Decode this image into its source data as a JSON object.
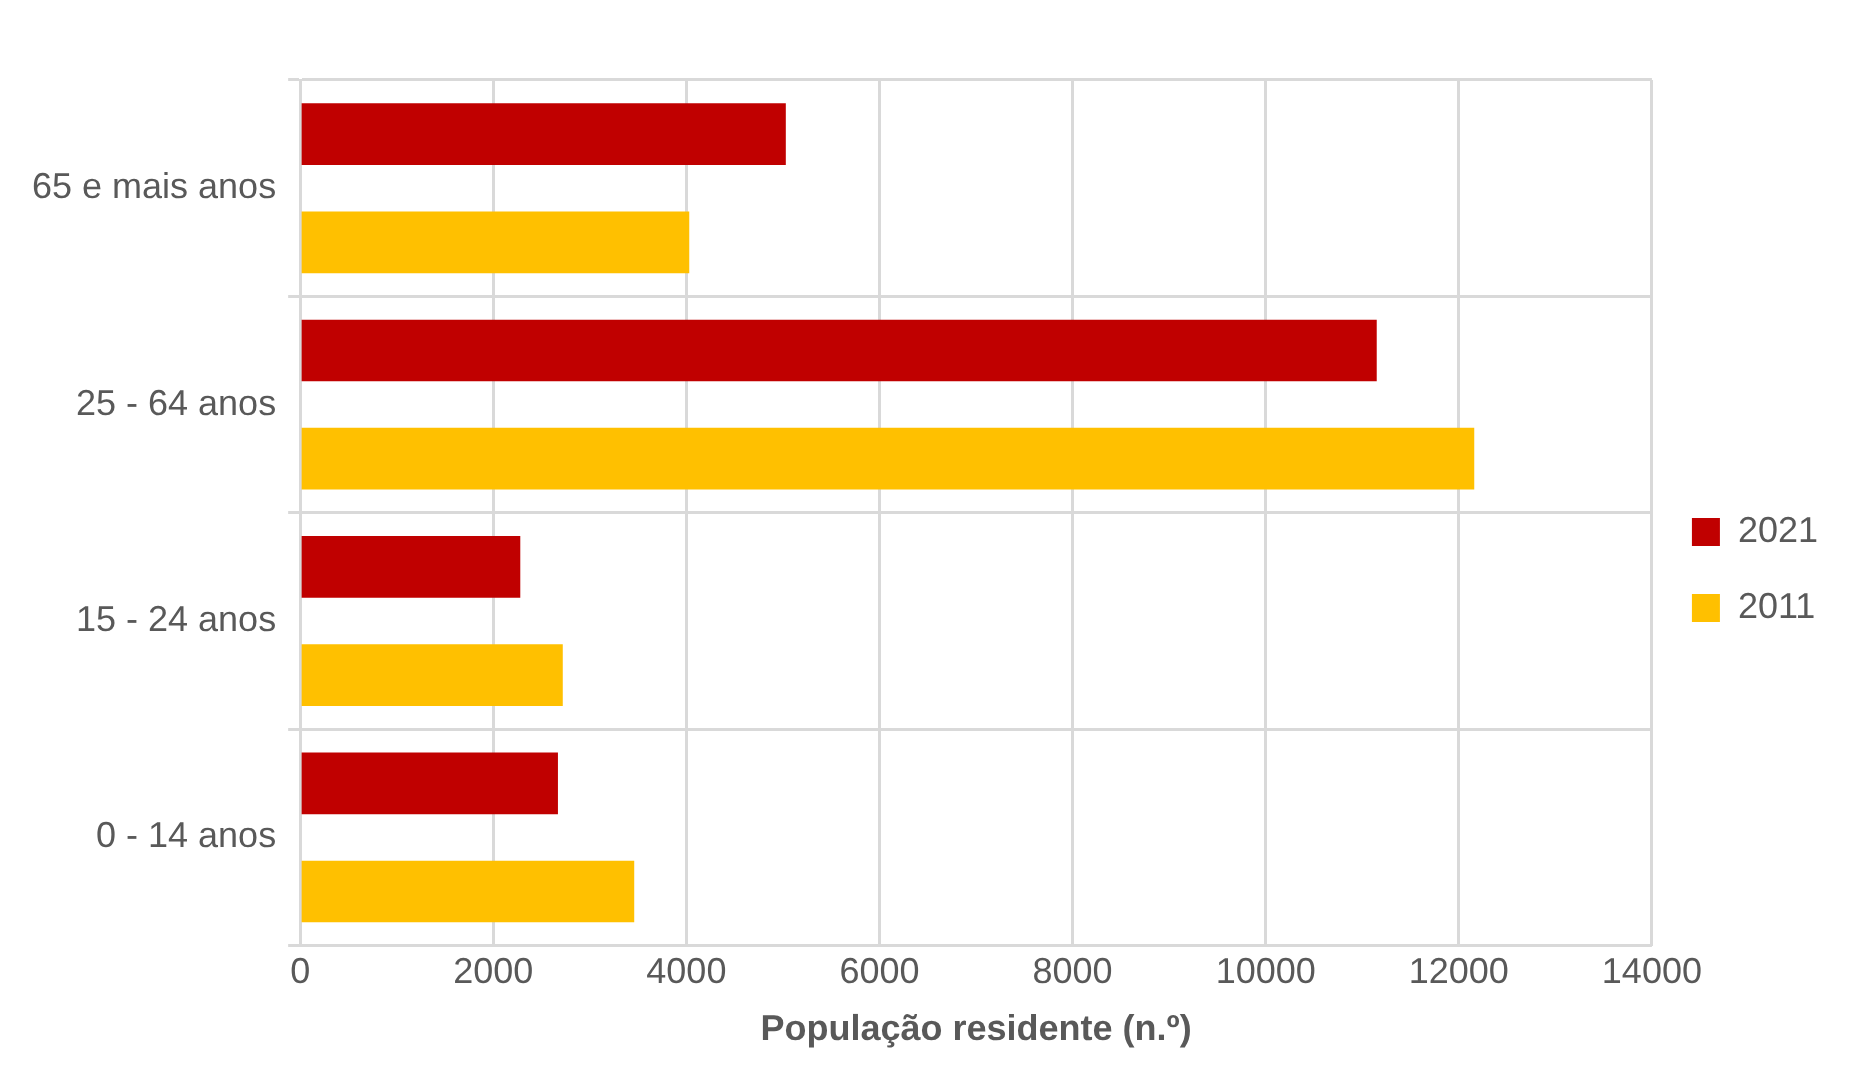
{
  "chart_data": {
    "type": "bar",
    "orientation": "horizontal",
    "xlabel": "População residente (n.º)",
    "categories": [
      "65 e mais anos",
      "25 - 64 anos",
      "15 - 24 anos",
      "0 - 14 anos"
    ],
    "series": [
      {
        "name": "2021",
        "color": "#c00000",
        "values": [
          5030,
          11150,
          2280,
          2670
        ]
      },
      {
        "name": "2011",
        "color": "#ffc000",
        "values": [
          4030,
          12160,
          2720,
          3460
        ]
      }
    ],
    "xlim": [
      0,
      14000
    ],
    "xticks": [
      0,
      2000,
      4000,
      6000,
      8000,
      10000,
      12000,
      14000
    ],
    "grid": true,
    "legend": "right"
  }
}
